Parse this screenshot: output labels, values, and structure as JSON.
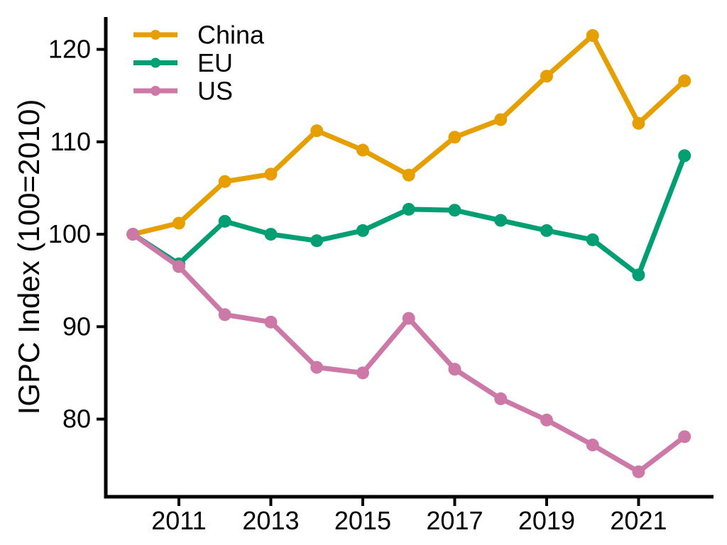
{
  "chart_data": {
    "type": "line",
    "title": "",
    "xlabel": "",
    "ylabel": "IGPC Index (100=2010)",
    "x": [
      2010,
      2011,
      2012,
      2013,
      2014,
      2015,
      2016,
      2017,
      2018,
      2019,
      2020,
      2021,
      2022
    ],
    "series": [
      {
        "name": "China",
        "color": "#E69F00",
        "values": [
          100.0,
          101.2,
          105.7,
          106.5,
          111.2,
          109.1,
          106.4,
          110.5,
          112.4,
          117.1,
          121.5,
          112.0,
          116.6
        ]
      },
      {
        "name": "EU",
        "color": "#009E73",
        "values": [
          100.0,
          96.8,
          101.4,
          100.0,
          99.3,
          100.4,
          102.7,
          102.6,
          101.5,
          100.4,
          99.4,
          95.6,
          108.5
        ]
      },
      {
        "name": "US",
        "color": "#CC79A7",
        "values": [
          100.0,
          96.5,
          91.3,
          90.5,
          85.6,
          85.0,
          90.9,
          85.4,
          82.2,
          79.9,
          77.2,
          74.3,
          78.1
        ]
      }
    ],
    "x_ticks": [
      2011,
      2013,
      2015,
      2017,
      2019,
      2021
    ],
    "y_ticks": [
      80,
      90,
      100,
      110,
      120
    ],
    "xlim": [
      2009.41,
      2022.63
    ],
    "ylim": [
      71.6,
      123.5
    ],
    "legend_position": "top-left",
    "grid": false,
    "axis_color": "#000000"
  }
}
